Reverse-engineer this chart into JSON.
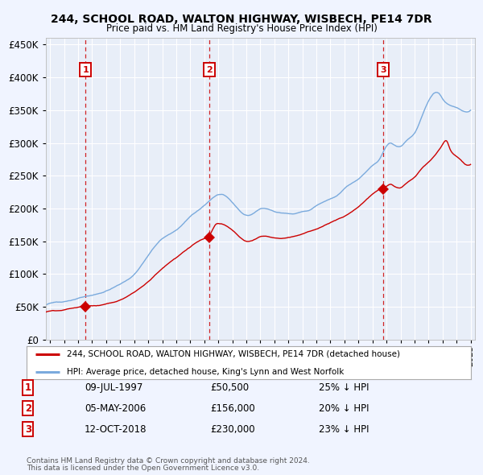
{
  "title": "244, SCHOOL ROAD, WALTON HIGHWAY, WISBECH, PE14 7DR",
  "subtitle": "Price paid vs. HM Land Registry's House Price Index (HPI)",
  "legend_label_red": "244, SCHOOL ROAD, WALTON HIGHWAY, WISBECH, PE14 7DR (detached house)",
  "legend_label_blue": "HPI: Average price, detached house, King's Lynn and West Norfolk",
  "transactions": [
    {
      "num": 1,
      "date": "09-JUL-1997",
      "price": 50500,
      "year": 1997.52,
      "price_str": "£50,500",
      "hpi_pct": "25% ↓ HPI"
    },
    {
      "num": 2,
      "date": "05-MAY-2006",
      "price": 156000,
      "year": 2006.34,
      "price_str": "£156,000",
      "hpi_pct": "20% ↓ HPI"
    },
    {
      "num": 3,
      "date": "12-OCT-2018",
      "price": 230000,
      "year": 2018.78,
      "price_str": "£230,000",
      "hpi_pct": "23% ↓ HPI"
    }
  ],
  "footer_line1": "Contains HM Land Registry data © Crown copyright and database right 2024.",
  "footer_line2": "This data is licensed under the Open Government Licence v3.0.",
  "ylim": [
    0,
    460000
  ],
  "xlim_start": 1994.7,
  "xlim_end": 2025.3,
  "background_color": "#f0f4ff",
  "plot_bg_color": "#e8eef8",
  "grid_color": "#ffffff",
  "red_color": "#cc0000",
  "blue_color": "#7aaadd"
}
